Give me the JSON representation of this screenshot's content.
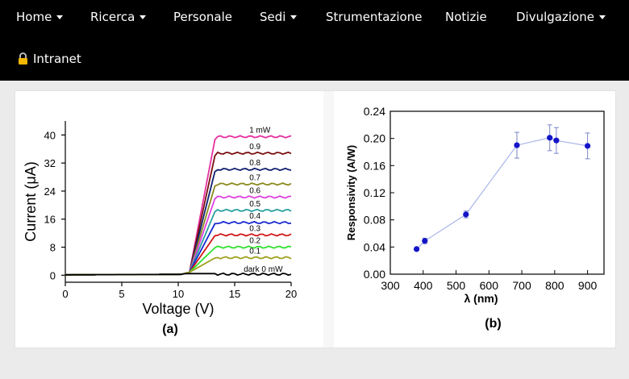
{
  "nav": {
    "items": [
      {
        "label": "Home",
        "dropdown": true
      },
      {
        "label": "Ricerca",
        "dropdown": true
      },
      {
        "label": "Personale",
        "dropdown": false
      },
      {
        "label": "Sedi",
        "dropdown": true
      },
      {
        "label": "Strumentazione",
        "dropdown": false
      },
      {
        "label": "Notizie",
        "dropdown": false
      },
      {
        "label": "Divulgazione",
        "dropdown": true
      }
    ],
    "intranet": {
      "label": "Intranet",
      "icon": "lock-icon"
    }
  },
  "chart_data": [
    {
      "type": "line",
      "panel_label": "(a)",
      "xlabel": "Voltage (V)",
      "ylabel": "Current (μA)",
      "xlim": [
        0,
        20
      ],
      "ylim": [
        -2,
        44
      ],
      "xticks": [
        0,
        5,
        10,
        15,
        20
      ],
      "yticks": [
        0,
        8,
        16,
        24,
        32,
        40
      ],
      "grid": false,
      "series": [
        {
          "name": "1 mW",
          "color": "#e62fa0",
          "saturation": 39.5
        },
        {
          "name": "0.9",
          "color": "#7a1010",
          "saturation": 34.8
        },
        {
          "name": "0.8",
          "color": "#102070",
          "saturation": 30.2
        },
        {
          "name": "0.7",
          "color": "#8c8a20",
          "saturation": 26.0
        },
        {
          "name": "0.6",
          "color": "#e040e0",
          "saturation": 22.3
        },
        {
          "name": "0.5",
          "color": "#2aa0a0",
          "saturation": 18.5
        },
        {
          "name": "0.4",
          "color": "#1a2ad0",
          "saturation": 15.0
        },
        {
          "name": "0.3",
          "color": "#d01818",
          "saturation": 11.5
        },
        {
          "name": "0.2",
          "color": "#30e030",
          "saturation": 8.0
        },
        {
          "name": "0.1",
          "color": "#a0a020",
          "saturation": 5.0
        },
        {
          "name": "dark 0 mW",
          "color": "#000000",
          "saturation": 0.3
        }
      ]
    },
    {
      "type": "scatter",
      "panel_label": "(b)",
      "xlabel": "λ (nm)",
      "ylabel": "Responsivity (A/W)",
      "xlim": [
        300,
        950
      ],
      "ylim": [
        0,
        0.24
      ],
      "xticks": [
        300,
        400,
        500,
        600,
        700,
        800,
        900
      ],
      "yticks": [
        "0.00",
        "0.04",
        "0.08",
        "0.12",
        "0.16",
        "0.20",
        "0.24"
      ],
      "grid": false,
      "connected": true,
      "points": [
        {
          "x": 380,
          "y": 0.037,
          "err": 0
        },
        {
          "x": 405,
          "y": 0.049,
          "err": 0.004
        },
        {
          "x": 530,
          "y": 0.088,
          "err": 0.005
        },
        {
          "x": 685,
          "y": 0.19,
          "err": 0.019
        },
        {
          "x": 785,
          "y": 0.201,
          "err": 0.019
        },
        {
          "x": 805,
          "y": 0.197,
          "err": 0.019
        },
        {
          "x": 900,
          "y": 0.189,
          "err": 0.019
        }
      ]
    }
  ]
}
